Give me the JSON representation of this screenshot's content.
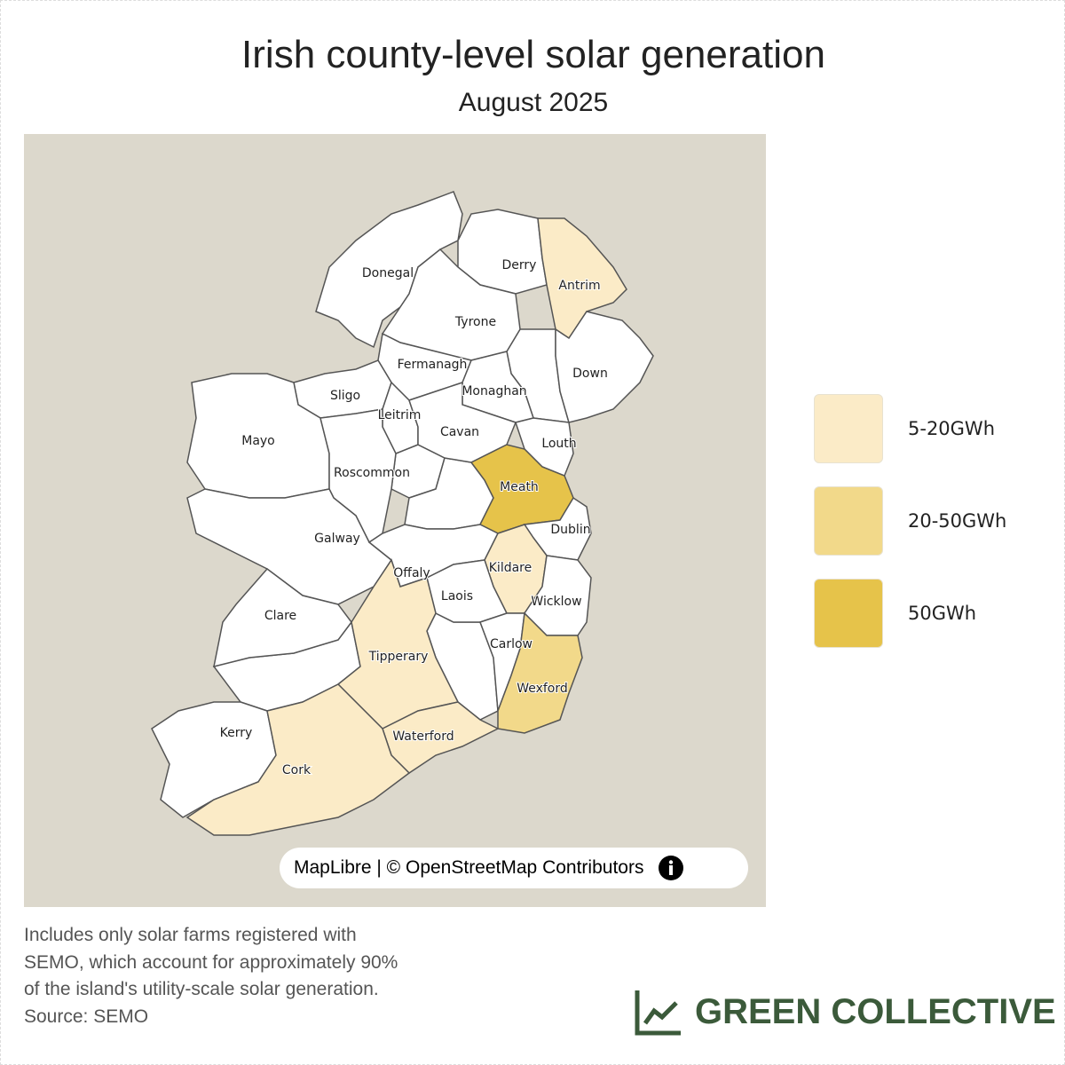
{
  "title": "Irish county-level solar generation",
  "subtitle": "August 2025",
  "map": {
    "background": "#dcd8cc",
    "default_color": "#ffffff",
    "counties": [
      {
        "label": "Donegal",
        "color": "#ffffff"
      },
      {
        "label": "Derry",
        "color": "#ffffff"
      },
      {
        "label": "Antrim",
        "color": "#fbebc7"
      },
      {
        "label": "Tyrone",
        "color": "#ffffff"
      },
      {
        "label": "Down",
        "color": "#ffffff"
      },
      {
        "label": "Fermanagh",
        "color": "#ffffff"
      },
      {
        "label": "Monaghan",
        "color": "#ffffff"
      },
      {
        "label": "Sligo",
        "color": "#ffffff"
      },
      {
        "label": "Leitrim",
        "color": "#ffffff"
      },
      {
        "label": "Mayo",
        "color": "#ffffff"
      },
      {
        "label": "Cavan",
        "color": "#ffffff"
      },
      {
        "label": "Louth",
        "color": "#ffffff"
      },
      {
        "label": "Meath",
        "color": "#e6c34a"
      },
      {
        "label": "Roscommon",
        "color": "#ffffff"
      },
      {
        "label": "Galway",
        "color": "#ffffff"
      },
      {
        "label": "Dublin",
        "color": "#ffffff"
      },
      {
        "label": "Offaly",
        "color": "#ffffff"
      },
      {
        "label": "Kildare",
        "color": "#fbebc7"
      },
      {
        "label": "Wicklow",
        "color": "#ffffff"
      },
      {
        "label": "Laois",
        "color": "#ffffff"
      },
      {
        "label": "Clare",
        "color": "#ffffff"
      },
      {
        "label": "Tipperary",
        "color": "#fbebc7"
      },
      {
        "label": "Carlow",
        "color": "#ffffff"
      },
      {
        "label": "Wexford",
        "color": "#f2d98a"
      },
      {
        "label": "Waterford",
        "color": "#fbebc7"
      },
      {
        "label": "Kerry",
        "color": "#ffffff"
      },
      {
        "label": "Cork",
        "color": "#fbebc7"
      }
    ],
    "attribution": "MapLibre | © OpenStreetMap Contributors"
  },
  "legend": [
    {
      "label": "5-20GWh",
      "color": "#fbebc7"
    },
    {
      "label": "20-50GWh",
      "color": "#f2d98a"
    },
    {
      "label": "50GWh",
      "color": "#e6c34a"
    }
  ],
  "note": [
    "Includes only solar farms registered with",
    "SEMO, which account for approximately 90%",
    "of the island's utility-scale solar generation.",
    "Source: SEMO"
  ],
  "brand": "GREEN COLLECTIVE"
}
